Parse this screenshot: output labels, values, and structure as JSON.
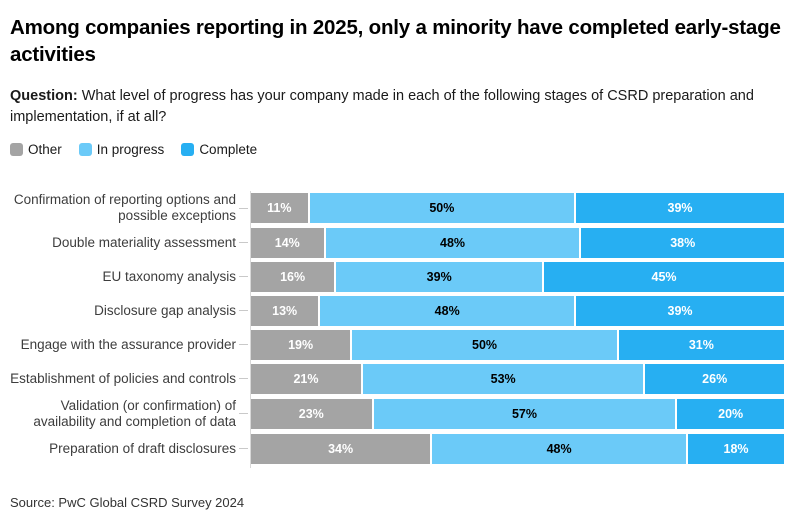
{
  "title": "Among companies reporting in 2025, only a minority have completed early-stage activities",
  "question": {
    "label": "Question:",
    "text": " What level of progress has your company made in each of the following stages of CSRD preparation and implementation, if at all?"
  },
  "legend": [
    {
      "label": "Other",
      "color": "#A4A4A4"
    },
    {
      "label": "In progress",
      "color": "#6BCAF8"
    },
    {
      "label": "Complete",
      "color": "#27AFF2"
    }
  ],
  "colors": {
    "other": "#A4A4A4",
    "in_progress": "#6BCAF8",
    "complete": "#27AFF2"
  },
  "chart_data": {
    "type": "bar",
    "orientation": "horizontal-stacked",
    "value_suffix": "%",
    "xlim": [
      0,
      100
    ],
    "grid": false,
    "legend_position": "top-left",
    "categories": [
      "Confirmation of reporting options and possible exceptions",
      "Double materiality assessment",
      "EU taxonomy analysis",
      "Disclosure gap analysis",
      "Engage with the assurance provider",
      "Establishment of policies and controls",
      "Validation (or confirmation) of availability and completion of data",
      "Preparation of draft disclosures"
    ],
    "series": [
      {
        "name": "Other",
        "color": "#A4A4A4",
        "label_color": "#FFFFFF",
        "values": [
          11,
          14,
          16,
          13,
          19,
          21,
          23,
          34
        ]
      },
      {
        "name": "In progress",
        "color": "#6BCAF8",
        "label_color": "#000000",
        "values": [
          50,
          48,
          39,
          48,
          50,
          53,
          57,
          48
        ]
      },
      {
        "name": "Complete",
        "color": "#27AFF2",
        "label_color": "#FFFFFF",
        "values": [
          39,
          38,
          45,
          39,
          31,
          26,
          20,
          18
        ]
      }
    ]
  },
  "source": "Source: PwC Global CSRD Survey 2024"
}
